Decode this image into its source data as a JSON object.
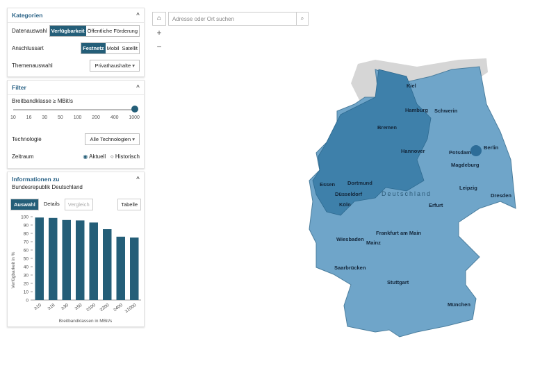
{
  "panels": {
    "kategorien": {
      "title": "Kategorien",
      "rows": [
        {
          "label": "Datenauswahl",
          "options": [
            "Verfügbarkeit",
            "Öffentliche Förderung"
          ]
        },
        {
          "label": "Anschlussart",
          "options": [
            "Festnetz",
            "Mobil",
            "Satellit"
          ]
        },
        {
          "label": "Themenauswahl",
          "select": "Privathaushalte"
        }
      ]
    },
    "filter": {
      "title": "Filter",
      "slider_label": "Breitbandklasse ≥ MBit/s",
      "slider_ticks": [
        "10",
        "16",
        "30",
        "50",
        "100",
        "200",
        "400",
        "1000"
      ],
      "technologie_label": "Technologie",
      "technologie": "Alle Technologien",
      "zeitraum_label": "Zeitraum",
      "zeitraum_options": [
        "Aktuell",
        "Historisch"
      ]
    },
    "info": {
      "title": "Informationen zu",
      "subtitle": "Bundesrepublik Deutschland",
      "buttons": [
        "Auswahl",
        "Details",
        "Vergleich",
        "Tabelle"
      ]
    }
  },
  "chart_data": {
    "type": "bar",
    "categories": [
      "≥10",
      "≥16",
      "≥30",
      "≥50",
      "≥100",
      "≥200",
      "≥400",
      "≥1000"
    ],
    "values": [
      99,
      98.5,
      96,
      95.5,
      93,
      85,
      76,
      75
    ],
    "color": "#245e78",
    "ylim": [
      0,
      100
    ],
    "yticks": [
      0,
      10,
      20,
      30,
      40,
      50,
      60,
      70,
      80,
      90,
      100
    ],
    "y_label": "Verfügbarkeit in %",
    "x_label": "Breitbandklassen in MBit/s"
  },
  "map": {
    "search_placeholder": "Adresse oder Ort suchen",
    "zoom_in": "+",
    "zoom_out": "−",
    "cities": [
      "Kiel",
      "Hamburg",
      "Schwerin",
      "Bremen",
      "Hannover",
      "Berlin",
      "Potsdam",
      "Magdeburg",
      "Essen",
      "Dortmund",
      "Düsseldorf",
      "Köln",
      "Leipzig",
      "Dresden",
      "Erfurt",
      "Deutschland",
      "Frankfurt am Main",
      "Wiesbaden",
      "Mainz",
      "Saarbrücken",
      "Stuttgart",
      "München"
    ]
  }
}
